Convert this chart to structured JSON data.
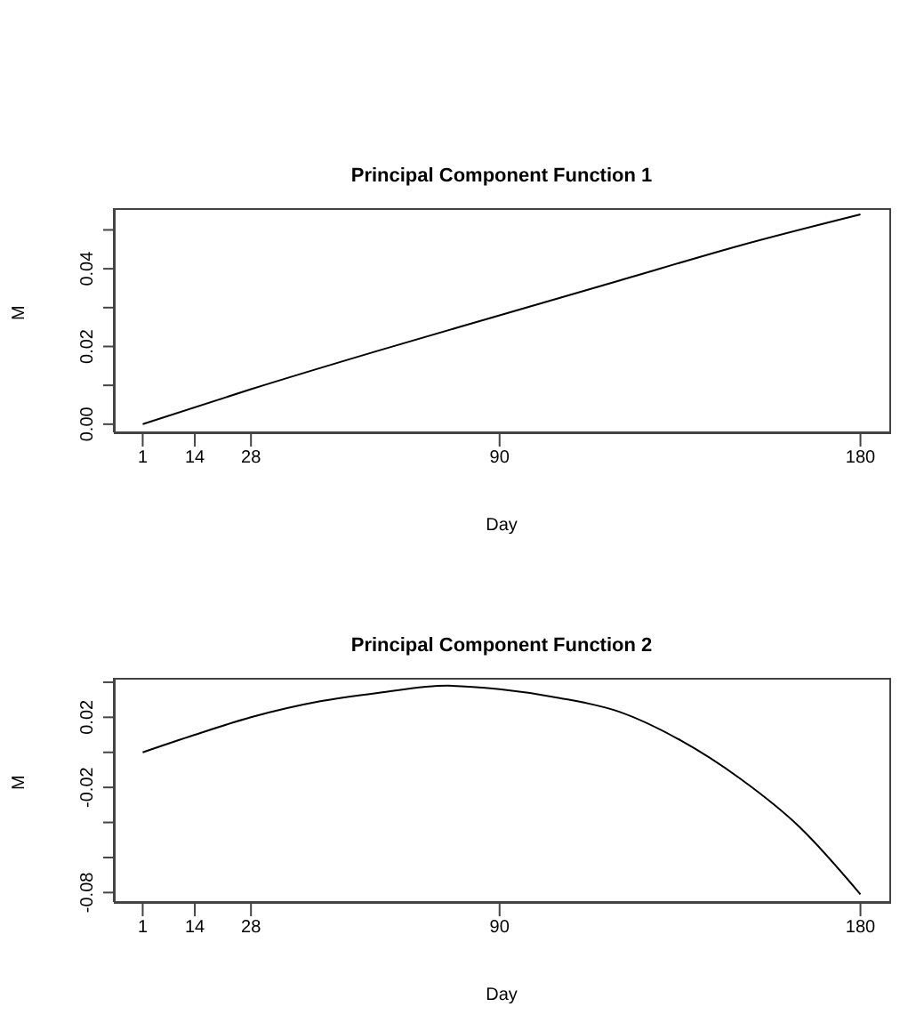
{
  "chart_data": [
    {
      "type": "line",
      "title": "Principal Component Function 1",
      "xlabel": "Day",
      "ylabel": "M",
      "x": [
        1,
        28,
        60,
        90,
        120,
        150,
        180
      ],
      "values": [
        0,
        0.009,
        0.019,
        0.028,
        0.037,
        0.046,
        0.054
      ],
      "color": "#000000",
      "xlim": [
        -6.2,
        187.2
      ],
      "ylim": [
        -0.0021,
        0.0556
      ],
      "xticks": [
        1,
        14,
        28,
        90,
        180
      ],
      "yticks": [
        {
          "value": 0,
          "label": "0.00"
        },
        {
          "value": 0.01,
          "label": null
        },
        {
          "value": 0.02,
          "label": "0.02"
        },
        {
          "value": 0.03,
          "label": null
        },
        {
          "value": 0.04,
          "label": "0.04"
        },
        {
          "value": 0.05,
          "label": null
        }
      ]
    },
    {
      "type": "line",
      "title": "Principal Component Function 2",
      "xlabel": "Day",
      "ylabel": "M",
      "x": [
        1,
        14,
        28,
        45,
        60,
        77,
        90,
        105,
        120,
        135,
        150,
        165,
        180
      ],
      "values": [
        0,
        0.01,
        0.02,
        0.029,
        0.034,
        0.038,
        0.036,
        0.031,
        0.023,
        0.007,
        -0.015,
        -0.043,
        -0.081
      ],
      "color": "#000000",
      "xlim": [
        -6.2,
        187.2
      ],
      "ylim": [
        -0.0854,
        0.0425
      ],
      "xticks": [
        1,
        14,
        28,
        90,
        180
      ],
      "yticks": [
        {
          "value": -0.08,
          "label": "-0.08"
        },
        {
          "value": -0.06,
          "label": null
        },
        {
          "value": -0.04,
          "label": null
        },
        {
          "value": -0.02,
          "label": "-0.02"
        },
        {
          "value": 0,
          "label": null
        },
        {
          "value": 0.02,
          "label": "0.02"
        },
        {
          "value": 0.04,
          "label": null
        }
      ]
    }
  ]
}
